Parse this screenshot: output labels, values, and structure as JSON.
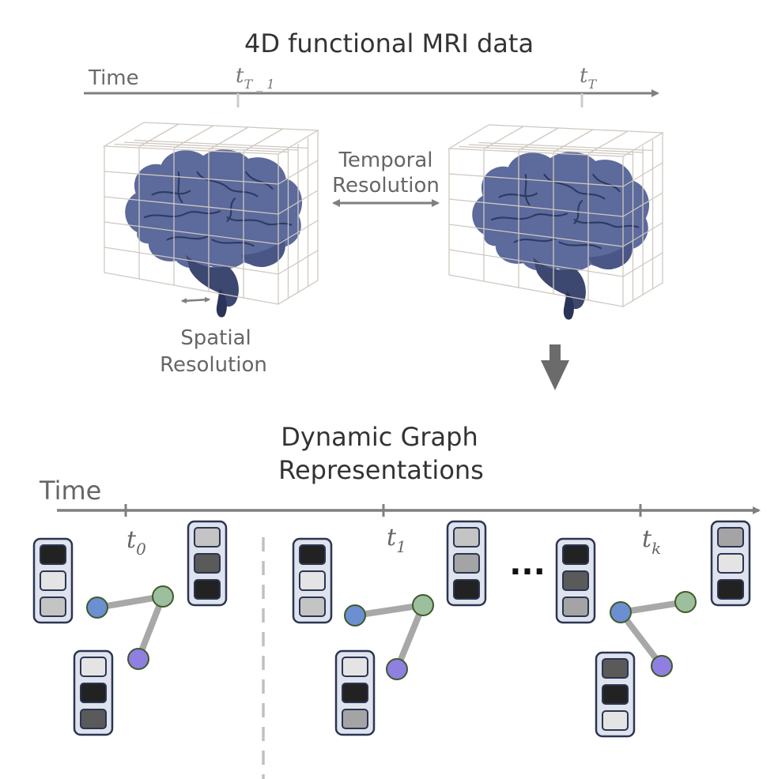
{
  "top": {
    "title": "4D functional MRI data",
    "time_label": "Time",
    "tick_left": {
      "base": "t",
      "sub": "T _ 1"
    },
    "tick_right": {
      "base": "t",
      "sub": "T"
    },
    "temporal_label_1": "Temporal",
    "temporal_label_2": "Resolution",
    "spatial_label_1": "Spatial",
    "spatial_label_2": "Resolution"
  },
  "bottom": {
    "title_1": "Dynamic Graph",
    "title_2": "Representations",
    "time_label": "Time",
    "tick_0": {
      "base": "t",
      "sub": "0"
    },
    "tick_1": {
      "base": "t",
      "sub": "1"
    },
    "tick_k": {
      "base": "t",
      "sub": "k"
    },
    "ellipsis": "···"
  },
  "colors": {
    "axis": "#7f7f7f",
    "brain": "#5c6a9c",
    "brain_dark": "#3d4870",
    "grid": "#cfc8c0",
    "node_blue": "#6b8fd0",
    "node_green": "#9dbf9d",
    "node_purple": "#8f7fe0",
    "node_stroke": "#3f5b2a",
    "edge": "#a8a8a8",
    "vector_frame": "#2c3552",
    "vector_bg": "#dfe3ee"
  },
  "icons": {
    "down_arrow": "down-arrow-icon",
    "brain": "brain-icon"
  }
}
